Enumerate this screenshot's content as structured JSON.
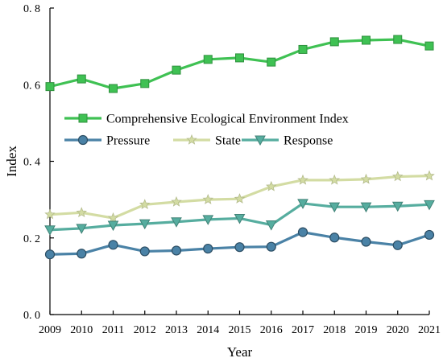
{
  "chart_data": {
    "type": "line",
    "title": "",
    "xlabel": "Year",
    "ylabel": "Index",
    "x": [
      2009,
      2010,
      2011,
      2012,
      2013,
      2014,
      2015,
      2016,
      2017,
      2018,
      2019,
      2020,
      2021
    ],
    "ylim": [
      0,
      0.8
    ],
    "yticks": [
      0,
      0.2,
      0.4,
      0.6,
      0.8
    ],
    "ytick_labels": [
      "0. 0",
      "0. 2",
      "0. 4",
      "0. 6",
      "0. 8"
    ],
    "grid": false,
    "legend": "upper-center",
    "series": [
      {
        "name": "Comprehensive Ecological Environment Index",
        "marker": "square",
        "color": "#3fc153",
        "values": [
          0.595,
          0.615,
          0.59,
          0.603,
          0.638,
          0.666,
          0.67,
          0.659,
          0.692,
          0.712,
          0.716,
          0.718,
          0.701
        ]
      },
      {
        "name": "Pressure",
        "marker": "circle",
        "color": "#4a82a6",
        "values": [
          0.157,
          0.159,
          0.182,
          0.165,
          0.167,
          0.172,
          0.176,
          0.177,
          0.215,
          0.201,
          0.19,
          0.181,
          0.208
        ]
      },
      {
        "name": "State",
        "marker": "star",
        "color": "#d3dca3",
        "values": [
          0.261,
          0.266,
          0.252,
          0.287,
          0.294,
          0.3,
          0.302,
          0.334,
          0.351,
          0.351,
          0.353,
          0.36,
          0.362
        ]
      },
      {
        "name": "Response",
        "marker": "triangle-down",
        "color": "#56ad9f",
        "values": [
          0.221,
          0.225,
          0.233,
          0.237,
          0.242,
          0.248,
          0.251,
          0.234,
          0.29,
          0.281,
          0.281,
          0.283,
          0.287
        ]
      }
    ]
  }
}
